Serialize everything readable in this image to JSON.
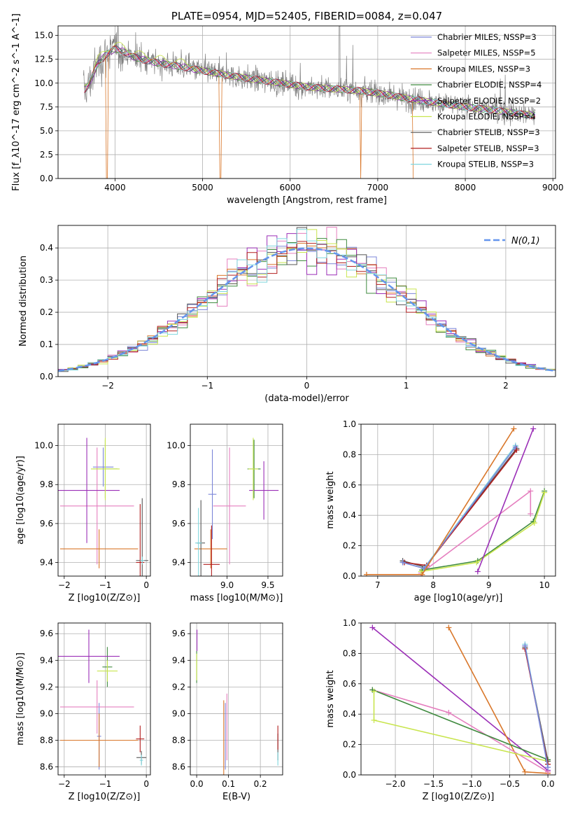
{
  "colors": {
    "c_blue": "#7b85d8",
    "c_pink": "#e57fbf",
    "c_orange": "#d9772a",
    "c_green": "#3f8a3f",
    "c_purple": "#9b2fb7",
    "c_yellow": "#c9e54f",
    "c_gray": "#555555",
    "c_red": "#b21f1f",
    "c_cyan": "#7fd6de",
    "c_obs": "#808080",
    "c_normal": "#6495ed"
  },
  "chart_data": [
    {
      "id": "spectrum",
      "type": "line",
      "title": "PLATE=0954, MJD=52405, FIBERID=0084, z=0.047",
      "xlabel": "wavelength [Angstrom, rest frame]",
      "ylabel": "Flux [f_λ10^-17 erg cm^-2 s^-1 A^-1]",
      "xlim": [
        3350,
        9030
      ],
      "ylim": [
        0,
        16
      ],
      "xticks": [
        "4000",
        "5000",
        "6000",
        "7000",
        "8000",
        "9000"
      ],
      "yticks": [
        "0.0",
        "2.5",
        "5.0",
        "7.5",
        "10.0",
        "12.5",
        "15.0"
      ],
      "legend": [
        "Chabrier MILES, NSSP=3",
        "Salpeter MILES, NSSP=5",
        "Kroupa MILES, NSSP=3",
        "Chabrier ELODIE, NSSP=4",
        "Salpeter ELODIE, NSSP=2",
        "Kroupa ELODIE, NSSP=4",
        "Chabrier STELIB, NSSP=3",
        "Salpeter STELIB, NSSP=3",
        "Kroupa STELIB, NSSP=3"
      ],
      "legend_placement": "upper-right",
      "continuum_x": [
        3650,
        3700,
        3800,
        3900,
        4000,
        4100,
        4200,
        4300,
        4400,
        4500,
        4700,
        5000,
        5300,
        5600,
        5900,
        6200,
        6500,
        6800,
        7100,
        7400,
        7700,
        8000,
        8300,
        8600,
        8800
      ],
      "continuum_y": [
        9.3,
        9.8,
        12.0,
        13.0,
        13.6,
        13.3,
        12.8,
        12.5,
        12.3,
        12.1,
        11.8,
        11.3,
        10.8,
        10.4,
        10.0,
        9.6,
        9.4,
        9.2,
        8.8,
        8.3,
        7.9,
        7.5,
        7.2,
        6.8,
        6.6
      ]
    },
    {
      "id": "residuals",
      "type": "histogram",
      "xlabel": "(data-model)/error",
      "ylabel": "Normed distribution",
      "xlim": [
        -2.5,
        2.5
      ],
      "ylim": [
        0,
        0.47
      ],
      "xticks": [
        "-2",
        "-1",
        "0",
        "1",
        "2"
      ],
      "yticks": [
        "0.0",
        "0.1",
        "0.2",
        "0.3",
        "0.4"
      ],
      "legend": [
        "N(0,1)"
      ],
      "bins": {
        "start": -2.5,
        "width": 0.1,
        "count": 50
      }
    },
    {
      "id": "age-vs-Z",
      "type": "errorbar",
      "xlabel": "Z [log10(Z/Z⊙)]",
      "ylabel": "age  [log10(age/yr)]",
      "xlim": [
        -2.15,
        0.1
      ],
      "ylim": [
        9.33,
        10.11
      ],
      "xticks": [
        "-2",
        "-1",
        "0"
      ],
      "yticks": [
        "9.4",
        "9.6",
        "9.8",
        "10.0"
      ],
      "points": [
        {
          "c": "c_blue",
          "x": -1.05,
          "xe": 0.25,
          "y": 9.89,
          "ye": 0.1
        },
        {
          "c": "c_pink",
          "x": -1.2,
          "xe": 0.9,
          "y": 9.69,
          "ye": 0.3
        },
        {
          "c": "c_orange",
          "x": -1.15,
          "xe": 0.95,
          "y": 9.47,
          "ye": 0.1
        },
        {
          "c": "c_green",
          "x": -1.0,
          "xe": 0.3,
          "y": 9.88,
          "ye": 0.15
        },
        {
          "c": "c_purple",
          "x": -1.45,
          "xe": 0.8,
          "y": 9.77,
          "ye": 0.27
        },
        {
          "c": "c_yellow",
          "x": -1.0,
          "xe": 0.35,
          "y": 9.88,
          "ye": 0.16
        },
        {
          "c": "c_gray",
          "x": -0.1,
          "xe": 0.15,
          "y": 9.41,
          "ye": 0.32
        },
        {
          "c": "c_red",
          "x": -0.15,
          "xe": 0.1,
          "y": 9.4,
          "ye": 0.3
        },
        {
          "c": "c_cyan",
          "x": -0.1,
          "xe": 0.05,
          "y": 9.41,
          "ye": 0.02
        }
      ]
    },
    {
      "id": "age-vs-mass",
      "type": "errorbar",
      "xlabel": "mass [log10(M/M⊙)]",
      "ylabel": "",
      "xlim": [
        8.55,
        9.68
      ],
      "ylim": [
        9.33,
        10.11
      ],
      "xticks": [
        "9.0",
        "9.5"
      ],
      "yticks": [
        "9.4",
        "9.6",
        "9.8",
        "10.0"
      ],
      "points": [
        {
          "c": "c_blue",
          "x": 8.82,
          "xe": 0.05,
          "y": 9.75,
          "ye": 0.23
        },
        {
          "c": "c_pink",
          "x": 9.03,
          "xe": 0.2,
          "y": 9.69,
          "ye": 0.3
        },
        {
          "c": "c_orange",
          "x": 8.8,
          "xe": 0.2,
          "y": 9.47,
          "ye": 0.1
        },
        {
          "c": "c_green",
          "x": 9.33,
          "xe": 0.08,
          "y": 9.88,
          "ye": 0.15
        },
        {
          "c": "c_purple",
          "x": 9.45,
          "xe": 0.18,
          "y": 9.77,
          "ye": 0.15
        },
        {
          "c": "c_yellow",
          "x": 9.32,
          "xe": 0.06,
          "y": 9.88,
          "ye": 0.16
        },
        {
          "c": "c_gray",
          "x": 8.68,
          "xe": 0.05,
          "y": 9.5,
          "ye": 0.22
        },
        {
          "c": "c_red",
          "x": 8.81,
          "xe": 0.1,
          "y": 9.39,
          "ye": 0.2
        },
        {
          "c": "c_cyan",
          "x": 8.65,
          "xe": 0.04,
          "y": 9.5,
          "ye": 0.18
        }
      ]
    },
    {
      "id": "massweight-vs-age",
      "type": "line",
      "xlabel": "age  [log10(age/yr)]",
      "ylabel": "mass weight",
      "xlim": [
        6.7,
        10.2
      ],
      "ylim": [
        0,
        1
      ],
      "xticks": [
        "7",
        "8",
        "9",
        "10"
      ],
      "yticks": [
        "0.0",
        "0.2",
        "0.4",
        "0.6",
        "0.8",
        "1.0"
      ],
      "series": [
        {
          "c": "c_pink",
          "x": [
            7.78,
            9.75,
            9.75
          ],
          "y": [
            0.02,
            0.56,
            0.41
          ]
        },
        {
          "c": "c_green",
          "x": [
            7.8,
            8.8,
            9.8,
            10.0
          ],
          "y": [
            0.04,
            0.1,
            0.36,
            0.56
          ]
        },
        {
          "c": "c_yellow",
          "x": [
            7.78,
            8.78,
            9.82,
            10.0
          ],
          "y": [
            0.03,
            0.09,
            0.35,
            0.55
          ]
        },
        {
          "c": "c_purple",
          "x": [
            8.8,
            9.8
          ],
          "y": [
            0.03,
            0.97
          ]
        },
        {
          "c": "c_gray",
          "x": [
            7.45,
            7.85,
            9.5
          ],
          "y": [
            0.1,
            0.06,
            0.84
          ]
        },
        {
          "c": "c_red",
          "x": [
            7.48,
            7.88,
            9.5
          ],
          "y": [
            0.09,
            0.07,
            0.83
          ]
        },
        {
          "c": "c_cyan",
          "x": [
            7.45,
            7.83,
            9.48
          ],
          "y": [
            0.09,
            0.05,
            0.86
          ]
        },
        {
          "c": "c_blue",
          "x": [
            7.45,
            7.84,
            9.48
          ],
          "y": [
            0.09,
            0.05,
            0.85
          ]
        },
        {
          "c": "c_orange",
          "x": [
            6.8,
            7.8,
            9.45
          ],
          "y": [
            0.01,
            0.01,
            0.97
          ]
        }
      ]
    },
    {
      "id": "mass-vs-Z",
      "type": "errorbar",
      "xlabel": "Z [log10(Z/Z⊙)]",
      "ylabel": "mass [log10(M/M⊙)]",
      "xlim": [
        -2.15,
        0.1
      ],
      "ylim": [
        8.54,
        9.68
      ],
      "xticks": [
        "-2",
        "-1",
        "0"
      ],
      "yticks": [
        "8.6",
        "8.8",
        "9.0",
        "9.2",
        "9.4",
        "9.6"
      ],
      "points": [
        {
          "c": "c_blue",
          "x": -1.15,
          "xe": 0.05,
          "y": 8.83,
          "ye": 0.25
        },
        {
          "c": "c_pink",
          "x": -1.2,
          "xe": 0.9,
          "y": 9.05,
          "ye": 0.2
        },
        {
          "c": "c_orange",
          "x": -1.15,
          "xe": 0.95,
          "y": 8.8,
          "ye": 0.2
        },
        {
          "c": "c_green",
          "x": -0.95,
          "xe": 0.12,
          "y": 9.35,
          "ye": 0.15
        },
        {
          "c": "c_purple",
          "x": -1.4,
          "xe": 0.75,
          "y": 9.43,
          "ye": 0.2
        },
        {
          "c": "c_yellow",
          "x": -0.95,
          "xe": 0.25,
          "y": 9.32,
          "ye": 0.08
        },
        {
          "c": "c_gray",
          "x": -0.12,
          "xe": 0.12,
          "y": 8.67,
          "ye": 0.05
        },
        {
          "c": "c_red",
          "x": -0.15,
          "xe": 0.1,
          "y": 8.81,
          "ye": 0.1
        },
        {
          "c": "c_cyan",
          "x": -0.12,
          "xe": 0.04,
          "y": 8.65,
          "ye": 0.04
        }
      ]
    },
    {
      "id": "mass-vs-EBV",
      "type": "errorbar",
      "xlabel": "E(B-V)",
      "ylabel": "",
      "xlim": [
        -0.02,
        0.27
      ],
      "ylim": [
        8.54,
        9.68
      ],
      "xticks": [
        "0.0",
        "0.1",
        "0.2"
      ],
      "yticks": [
        "8.6",
        "8.8",
        "9.0",
        "9.2",
        "9.4",
        "9.6"
      ],
      "points": [
        {
          "c": "c_blue",
          "x": 0.09,
          "xe": 0,
          "y": 8.83,
          "ye": 0.25
        },
        {
          "c": "c_pink",
          "x": 0.095,
          "xe": 0,
          "y": 8.9,
          "ye": 0.25
        },
        {
          "c": "c_orange",
          "x": 0.085,
          "xe": 0,
          "y": 8.8,
          "ye": 0.3
        },
        {
          "c": "c_green",
          "x": 0.0,
          "xe": 0,
          "y": 9.35,
          "ye": 0.12
        },
        {
          "c": "c_purple",
          "x": 0.001,
          "xe": 0,
          "y": 9.55,
          "ye": 0.08
        },
        {
          "c": "c_yellow",
          "x": 0.0,
          "xe": 0,
          "y": 9.35,
          "ye": 0.1
        },
        {
          "c": "c_gray",
          "x": 0.255,
          "xe": 0,
          "y": 8.75,
          "ye": 0.1
        },
        {
          "c": "c_red",
          "x": 0.255,
          "xe": 0,
          "y": 8.82,
          "ye": 0.09
        },
        {
          "c": "c_cyan",
          "x": 0.255,
          "xe": 0,
          "y": 8.66,
          "ye": 0.05
        }
      ]
    },
    {
      "id": "massweight-vs-Z",
      "type": "line",
      "xlabel": "Z [log10(Z/Z⊙)]",
      "ylabel": "mass weight",
      "xlim": [
        -2.45,
        0.1
      ],
      "ylim": [
        0,
        1
      ],
      "xticks": [
        "-2.0",
        "-1.5",
        "-1.0",
        "-0.5",
        "0.0"
      ],
      "yticks": [
        "0.0",
        "0.2",
        "0.4",
        "0.6",
        "0.8",
        "1.0"
      ],
      "series": [
        {
          "c": "c_purple",
          "x": [
            -2.3,
            0.0
          ],
          "y": [
            0.97,
            0.03
          ]
        },
        {
          "c": "c_orange",
          "x": [
            -1.3,
            -0.3,
            0.0
          ],
          "y": [
            0.97,
            0.02,
            0.01
          ]
        },
        {
          "c": "c_pink",
          "x": [
            -2.3,
            -1.3,
            0.0
          ],
          "y": [
            0.56,
            0.41,
            0.02
          ]
        },
        {
          "c": "c_green",
          "x": [
            -2.3,
            0.0
          ],
          "y": [
            0.56,
            0.1
          ]
        },
        {
          "c": "c_yellow",
          "x": [
            -2.28,
            -2.28,
            0.0
          ],
          "y": [
            0.55,
            0.36,
            0.09
          ]
        },
        {
          "c": "c_gray",
          "x": [
            -0.3,
            0.0
          ],
          "y": [
            0.84,
            0.09
          ]
        },
        {
          "c": "c_red",
          "x": [
            -0.3,
            0.0
          ],
          "y": [
            0.83,
            0.07
          ]
        },
        {
          "c": "c_cyan",
          "x": [
            -0.3,
            0.0
          ],
          "y": [
            0.86,
            0.05
          ]
        },
        {
          "c": "c_blue",
          "x": [
            -0.3,
            0.0
          ],
          "y": [
            0.85,
            0.05
          ]
        }
      ]
    }
  ]
}
